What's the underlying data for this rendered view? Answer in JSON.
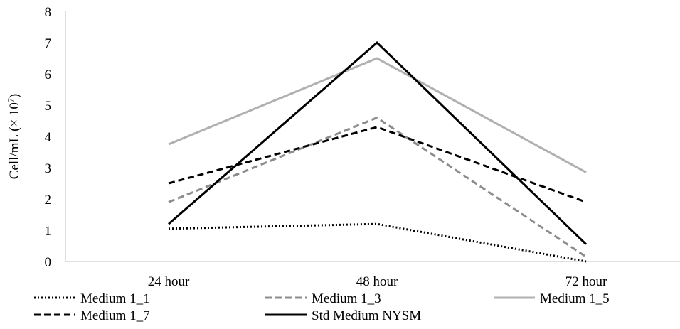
{
  "chart_data": {
    "type": "line",
    "title": "",
    "xlabel": "",
    "ylabel": "Cell/mL (× 10",
    "ylabel_superscript": "7",
    "ylabel_close": ")",
    "categories": [
      "24 hour",
      "48 hour",
      "72 hour"
    ],
    "ylim": [
      0,
      8
    ],
    "yticks": [
      "0",
      "1",
      "2",
      "3",
      "4",
      "5",
      "6",
      "7",
      "8"
    ],
    "grid": false,
    "legend_position": "bottom",
    "series": [
      {
        "name": "Medium 1_1",
        "values": [
          1.05,
          1.2,
          0.0
        ],
        "color": "#000000",
        "style": "dotted"
      },
      {
        "name": "Medium 1_3",
        "values": [
          1.9,
          4.6,
          0.15
        ],
        "color": "#8c8c8c",
        "style": "dashed"
      },
      {
        "name": "Medium 1_5",
        "values": [
          3.75,
          6.5,
          2.85
        ],
        "color": "#b0b0b0",
        "style": "solid"
      },
      {
        "name": "Medium 1_7",
        "values": [
          2.5,
          4.3,
          1.9
        ],
        "color": "#000000",
        "style": "dashed"
      },
      {
        "name": "Std Medium NYSM",
        "values": [
          1.2,
          7.0,
          0.55
        ],
        "color": "#000000",
        "style": "solid"
      }
    ]
  }
}
